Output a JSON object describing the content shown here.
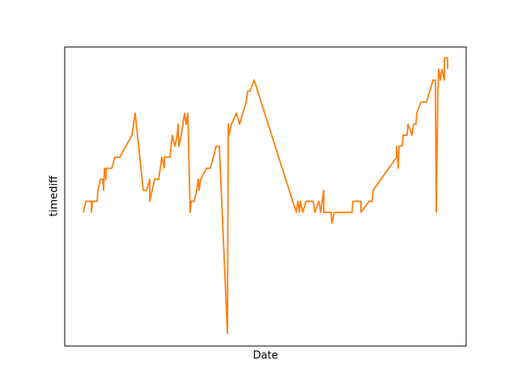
{
  "chart_data": {
    "type": "line",
    "x_label": "Date",
    "y_label": "timediff",
    "xlim": [
      0,
      99.2
    ],
    "ylim": [
      -12.13,
      15
    ],
    "color": "#ff7f0e",
    "x": [
      4.6,
      5.2,
      6.6,
      6.6,
      6.8,
      8,
      8.2,
      8.8,
      9.4,
      9.6,
      9.8,
      10.2,
      10.2,
      11.6,
      12.4,
      13.6,
      16.6,
      17.4,
      19.4,
      20.2,
      21,
      21,
      22.2,
      23.2,
      24,
      24.6,
      24.6,
      26,
      26.6,
      27.2,
      27.8,
      28,
      28.2,
      28.8,
      29.6,
      30,
      30.4,
      31,
      31.2,
      32,
      32.6,
      33,
      33.2,
      33.6,
      35,
      36,
      37.4,
      38.2,
      40.2,
      40.4,
      40.6,
      41.2,
      42.4,
      43.2,
      44.8,
      45.2,
      45.8,
      46.8,
      57.2,
      57.6,
      58,
      58.2,
      58.8,
      59.6,
      61.4,
      61.8,
      62.8,
      63.2,
      64,
      64,
      65.8,
      66,
      66.6,
      71,
      71.2,
      73.2,
      73.2,
      75.2,
      76,
      76.2,
      82,
      82,
      82.4,
      82.6,
      83.4,
      83.6,
      84.6,
      84.8,
      85.8,
      86.2,
      86.8,
      87,
      88,
      89.4,
      91,
      91.6,
      91.8,
      92.2,
      92.4,
      92.8,
      93.2,
      93.8,
      93.8,
      94.6,
      94.6
    ],
    "values": [
      0,
      1,
      1,
      0,
      1,
      1,
      2,
      3,
      3,
      2,
      4,
      3,
      4,
      4,
      5,
      5,
      7,
      9,
      2,
      2,
      3,
      1,
      3,
      3,
      5,
      4,
      5,
      5,
      7,
      6,
      7,
      8,
      6,
      7,
      9,
      8,
      9,
      0,
      1,
      1,
      2,
      3,
      2,
      3,
      4,
      4,
      6,
      6,
      -11,
      8,
      7,
      8,
      9,
      8,
      10,
      11,
      11,
      12,
      0,
      1,
      0,
      1,
      0,
      1,
      1,
      0,
      1,
      0,
      2,
      0,
      0,
      -1,
      0,
      0,
      1,
      1,
      0,
      1,
      1,
      2,
      5,
      6,
      4,
      6,
      6,
      7,
      7,
      8,
      7,
      8,
      8,
      9,
      10,
      10,
      12,
      12,
      0,
      11,
      13,
      12,
      13,
      12,
      14,
      14,
      13
    ]
  }
}
